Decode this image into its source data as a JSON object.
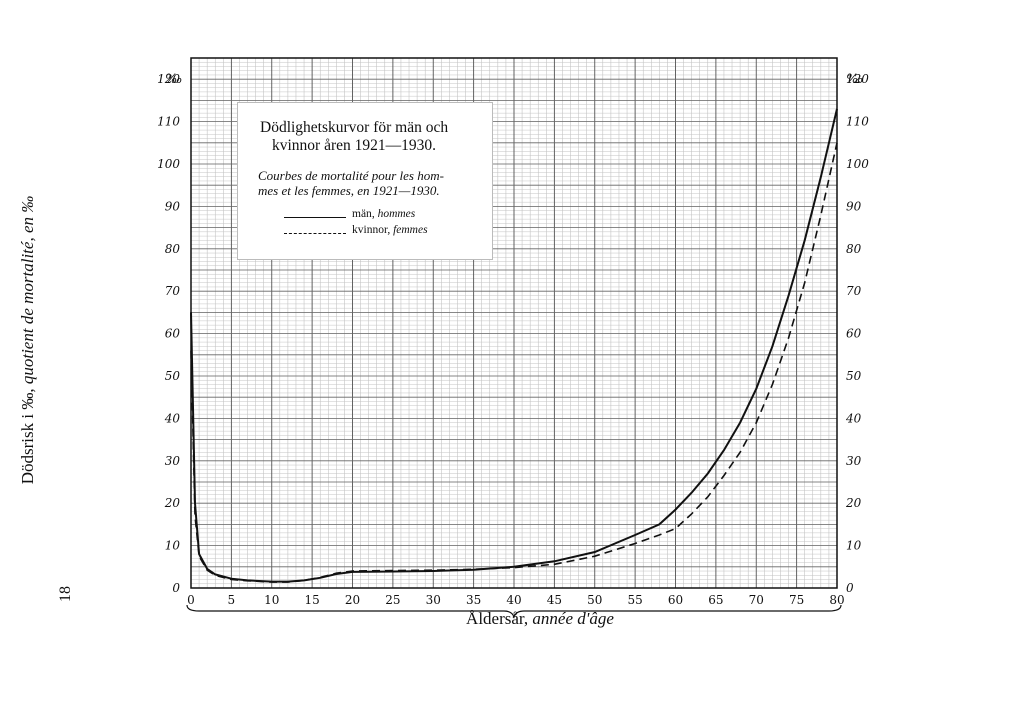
{
  "page_number": "18",
  "chart_data": {
    "type": "line",
    "title_line1": "Dödlighetskurvor för män och",
    "title_line2": "kvinnor åren 1921—1930.",
    "subtitle_line1": "Courbes de mortalité pour les hom-",
    "subtitle_line2": "mes et les femmes, en 1921—1930.",
    "ylabel_main": "Dödsrisk i ‰, ",
    "ylabel_italic": "quotient de mortalité, en ‰",
    "xlabel_main": "Åldersår, ",
    "xlabel_italic": "année d'âge",
    "y_unit": "‰",
    "xlim": [
      0,
      80
    ],
    "ylim": [
      0,
      125
    ],
    "x_ticks": [
      0,
      5,
      10,
      15,
      20,
      25,
      30,
      35,
      40,
      45,
      50,
      55,
      60,
      65,
      70,
      75,
      80
    ],
    "y_ticks": [
      0,
      10,
      20,
      30,
      40,
      50,
      60,
      70,
      80,
      90,
      100,
      110,
      120
    ],
    "grid": true,
    "legend_placement": "top-left",
    "series": [
      {
        "name": "män",
        "name_fr": "hommes",
        "style": "solid",
        "x": [
          0,
          0.5,
          1,
          2,
          3,
          5,
          7,
          10,
          12,
          14,
          16,
          18,
          20,
          25,
          30,
          35,
          40,
          45,
          50,
          55,
          58,
          60,
          62,
          64,
          66,
          68,
          70,
          72,
          74,
          76,
          78,
          80
        ],
        "values": [
          65,
          20,
          8,
          4.5,
          3.2,
          2.2,
          1.8,
          1.5,
          1.5,
          1.8,
          2.4,
          3.3,
          3.8,
          3.9,
          4.0,
          4.3,
          5.0,
          6.3,
          8.5,
          12.5,
          15,
          18.5,
          22.5,
          27,
          32.5,
          39,
          47,
          57,
          69,
          82,
          97,
          113
        ]
      },
      {
        "name": "kvinnor",
        "name_fr": "femmes",
        "style": "dashed",
        "x": [
          0,
          0.5,
          1,
          2,
          3,
          5,
          7,
          10,
          12,
          14,
          16,
          18,
          20,
          25,
          30,
          35,
          40,
          45,
          50,
          55,
          58,
          60,
          62,
          64,
          66,
          68,
          70,
          72,
          74,
          76,
          78,
          80
        ],
        "values": [
          56,
          17,
          7.5,
          4.2,
          3.0,
          2.0,
          1.7,
          1.4,
          1.4,
          1.8,
          2.5,
          3.5,
          4.0,
          4.1,
          4.2,
          4.4,
          4.8,
          5.6,
          7.5,
          10.5,
          12.5,
          14,
          17.5,
          21.5,
          26.5,
          32,
          39,
          48,
          59,
          72,
          88,
          105
        ]
      }
    ]
  }
}
